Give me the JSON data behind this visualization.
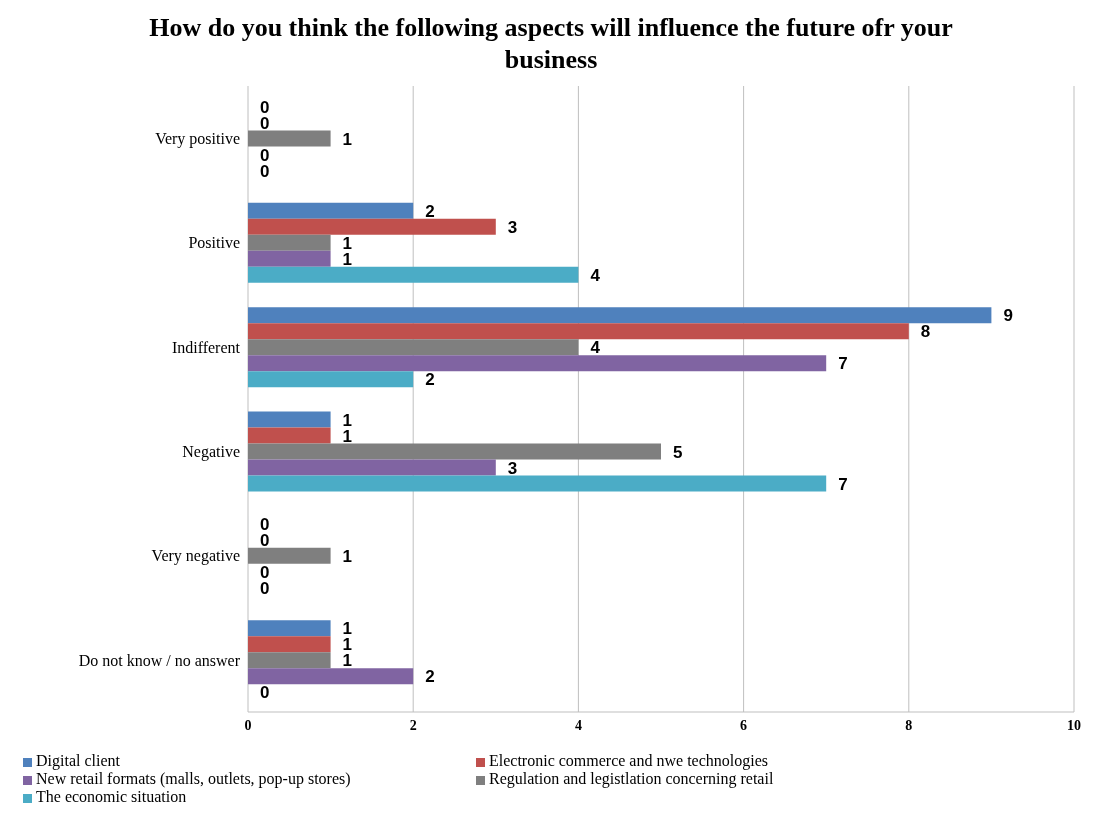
{
  "chart_data": {
    "type": "bar",
    "orientation": "horizontal",
    "title": "How do you think the following aspects will influence the future ofr your business",
    "categories": [
      "Very positive",
      "Positive",
      "Indifferent",
      "Negative",
      "Very negative",
      "Do not know / no answer"
    ],
    "series": [
      {
        "name": "Digital client",
        "color": "#4f81bd",
        "values": [
          0,
          2,
          9,
          1,
          0,
          1
        ]
      },
      {
        "name": "Electronic commerce and nwe technologies",
        "color": "#c0504d",
        "values": [
          0,
          3,
          8,
          1,
          0,
          1
        ]
      },
      {
        "name": "Regulation and legistlation concerning retail",
        "color": "#7f7f7f",
        "values": [
          1,
          1,
          4,
          5,
          1,
          1
        ]
      },
      {
        "name": "New retail formats (malls, outlets, pop-up stores)",
        "color": "#8064a2",
        "values": [
          0,
          1,
          7,
          3,
          0,
          2
        ]
      },
      {
        "name": "The economic situation",
        "color": "#4bacc6",
        "values": [
          0,
          4,
          2,
          7,
          0,
          0
        ]
      }
    ],
    "xlim": [
      0,
      10
    ],
    "xticks": [
      0,
      2,
      4,
      6,
      8,
      10
    ],
    "grid": "x",
    "legend": "bottom",
    "data_labels": true
  }
}
